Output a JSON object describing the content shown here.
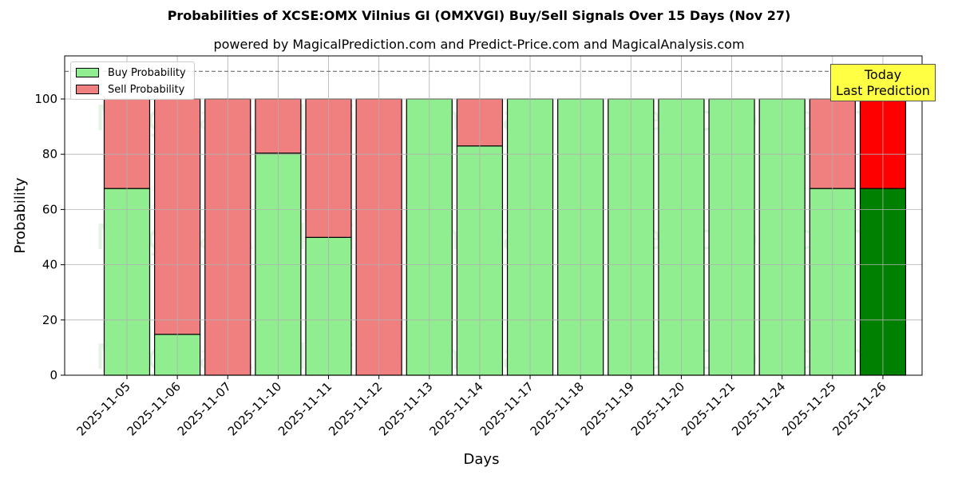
{
  "chart_data": {
    "type": "bar",
    "stacked": true,
    "title": "Probabilities of XCSE:OMX Vilnius GI (OMXVGI) Buy/Sell Signals Over 15 Days (Nov 27)",
    "subtitle": "powered by MagicalPrediction.com and Predict-Price.com and MagicalAnalysis.com",
    "xlabel": "Days",
    "ylabel": "Probability",
    "ylim": [
      0,
      115
    ],
    "yticks": [
      0,
      20,
      40,
      60,
      80,
      100
    ],
    "grid": true,
    "reference_line": {
      "y": 110,
      "style": "dashed",
      "color": "#808080"
    },
    "legend_position": "upper left",
    "categories": [
      "2025-11-05",
      "2025-11-06",
      "2025-11-07",
      "2025-11-10",
      "2025-11-11",
      "2025-11-12",
      "2025-11-13",
      "2025-11-14",
      "2025-11-17",
      "2025-11-18",
      "2025-11-19",
      "2025-11-20",
      "2025-11-21",
      "2025-11-24",
      "2025-11-25",
      "2025-11-26"
    ],
    "series": [
      {
        "name": "Buy Probability",
        "color": "#90ee90",
        "values": [
          67.6,
          14.8,
          0,
          80.4,
          49.9,
          0,
          100,
          83.0,
          100,
          100,
          100,
          100,
          100,
          100,
          67.6,
          67.6
        ]
      },
      {
        "name": "Sell Probability",
        "color": "#f08080",
        "values": [
          32.4,
          85.2,
          100,
          19.6,
          50.1,
          100,
          0,
          17.0,
          0,
          0,
          0,
          0,
          0,
          0,
          32.4,
          32.4
        ]
      }
    ],
    "highlight": {
      "index": 15,
      "buy_color": "#008000",
      "sell_color": "#ff0000",
      "annotation": "Today\nLast Prediction"
    },
    "watermarks": [
      "MagicalAnalysis.com",
      "MagicalPrediction.com"
    ]
  },
  "legend": {
    "buy_label": "Buy Probability",
    "sell_label": "Sell Probability"
  },
  "annotation": {
    "line1": "Today",
    "line2": "Last Prediction"
  }
}
